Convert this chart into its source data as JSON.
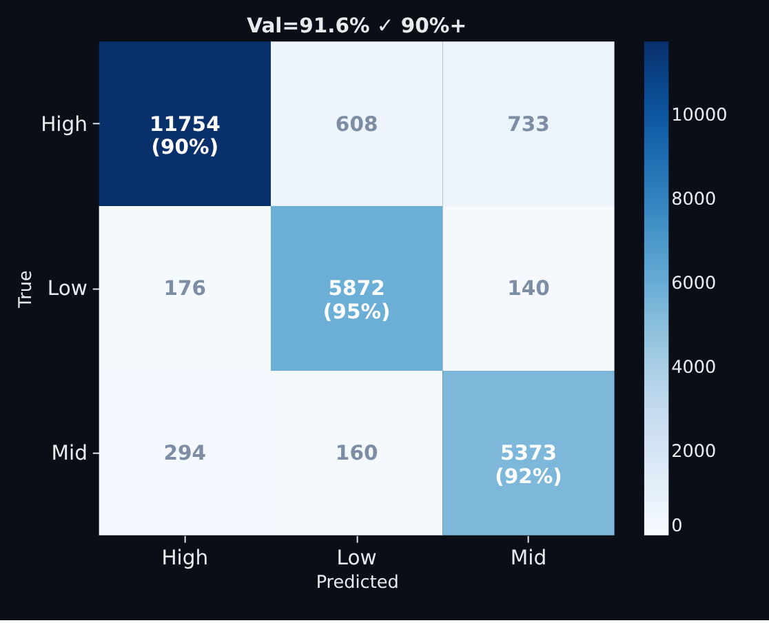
{
  "chart_data": {
    "type": "heatmap",
    "title": "Val=91.6% ✓ 90%+",
    "xlabel": "Predicted",
    "ylabel": "True",
    "categories": [
      "High",
      "Low",
      "Mid"
    ],
    "y_categories": [
      "High",
      "Low",
      "Mid"
    ],
    "cells": [
      [
        11754,
        608,
        733
      ],
      [
        176,
        5872,
        140
      ],
      [
        294,
        160,
        5373
      ]
    ],
    "cell_labels": [
      [
        "11754\n(90%)",
        "608",
        "733"
      ],
      [
        "176",
        "5872\n(95%)",
        "140"
      ],
      [
        "294",
        "160",
        "5373\n(92%)"
      ]
    ],
    "clim": [
      0,
      11754
    ],
    "cticks": [
      0,
      2000,
      4000,
      6000,
      8000,
      10000
    ]
  }
}
